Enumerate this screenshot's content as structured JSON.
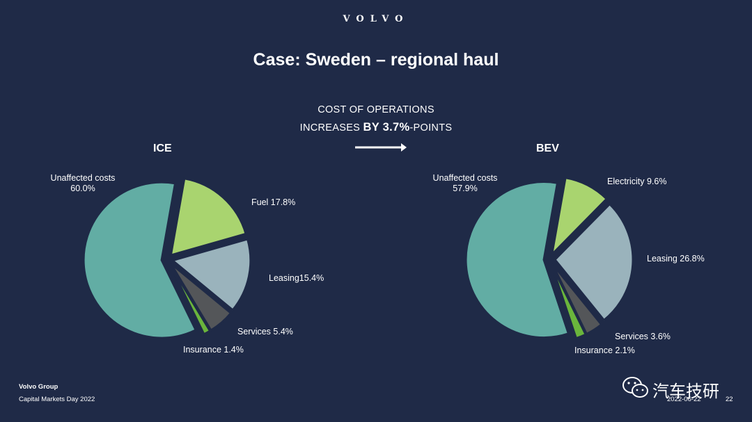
{
  "header": {
    "logo": "VOLVO",
    "title": "Case: Sweden – regional haul"
  },
  "headline": {
    "line1": "COST OF OPERATIONS",
    "line2_prefix": "INCREASES ",
    "line2_by": "BY ",
    "line2_value": "3.7%",
    "line2_suffix": "-POINTS"
  },
  "chart_data": [
    {
      "type": "pie",
      "title": "ICE",
      "slices": [
        {
          "label": "Unaffected costs",
          "value": 60.0,
          "display": "Unaffected costs",
          "pct": "60.0%",
          "color": "#62ada4"
        },
        {
          "label": "Fuel",
          "value": 17.8,
          "display": "Fuel 17.8%",
          "color": "#a9d46f"
        },
        {
          "label": "Leasing",
          "value": 15.4,
          "display": "Leasing15.4%",
          "color": "#9ab3bc"
        },
        {
          "label": "Services",
          "value": 5.4,
          "display": "Services 5.4%",
          "color": "#545659"
        },
        {
          "label": "Insurance",
          "value": 1.4,
          "display": "Insurance 1.4%",
          "color": "#6ab53c"
        }
      ]
    },
    {
      "type": "pie",
      "title": "BEV",
      "slices": [
        {
          "label": "Unaffected costs",
          "value": 57.9,
          "display": "Unaffected costs",
          "pct": "57.9%",
          "color": "#62ada4"
        },
        {
          "label": "Electricity",
          "value": 9.6,
          "display": "Electricity 9.6%",
          "color": "#a9d46f"
        },
        {
          "label": "Leasing",
          "value": 26.8,
          "display": "Leasing 26.8%",
          "color": "#9ab3bc"
        },
        {
          "label": "Services",
          "value": 3.6,
          "display": "Services 3.6%",
          "color": "#545659"
        },
        {
          "label": "Insurance",
          "value": 2.1,
          "display": "Insurance 2.1%",
          "color": "#6ab53c"
        }
      ]
    }
  ],
  "footer": {
    "brand": "Volvo Group",
    "event": "Capital Markets Day 2022",
    "date": "2022-06-22",
    "page": "22",
    "watermark": "汽车技研",
    "watermark_icon": "wechat-icon"
  }
}
